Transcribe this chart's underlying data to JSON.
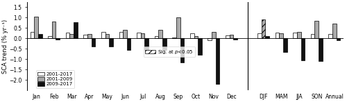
{
  "categories": [
    "Jan",
    "Feb",
    "Mar",
    "Apr",
    "May",
    "Jun",
    "Jul",
    "Aug",
    "Sep",
    "Oct",
    "Nov",
    "Dec",
    "DJF",
    "MAM",
    "JJA",
    "SON",
    "Annual"
  ],
  "series": {
    "2001-2017": [
      0.3,
      0.12,
      0.28,
      0.18,
      0.3,
      0.32,
      0.28,
      0.1,
      0.05,
      0.25,
      -0.08,
      0.15,
      0.25,
      0.27,
      0.28,
      0.22,
      0.22
    ],
    "2001-2009": [
      1.05,
      0.82,
      0.2,
      0.2,
      0.22,
      0.42,
      0.23,
      0.42,
      1.0,
      0.12,
      0.3,
      0.18,
      0.92,
      0.25,
      0.32,
      0.85,
      0.72
    ],
    "2009-2017": [
      0.22,
      -0.05,
      0.78,
      -0.38,
      -0.4,
      -0.55,
      -0.55,
      -0.55,
      -1.15,
      -0.78,
      -2.18,
      -0.07,
      0.12,
      -0.65,
      -1.05,
      -1.08,
      -0.1
    ]
  },
  "sig_2001_2017": [
    "Aug"
  ],
  "sig_2001_2009": [
    "DJF"
  ],
  "sig_2009_2017": [],
  "ylabel": "SCA trend (% yr⁻¹)",
  "ylim": [
    -2.5,
    1.75
  ],
  "yticks": [
    -2.0,
    -1.5,
    -1.0,
    -0.5,
    0.0,
    0.5,
    1.0,
    1.5
  ],
  "colors": {
    "2001-2017": "#ffffff",
    "2001-2009": "#aaaaaa",
    "2009-2017": "#111111"
  },
  "figsize": [
    5.0,
    1.47
  ],
  "dpi": 100,
  "bar_width": 0.22,
  "tick_fontsize": 5.5,
  "ylabel_fontsize": 6.0,
  "legend_fontsize": 5.0
}
